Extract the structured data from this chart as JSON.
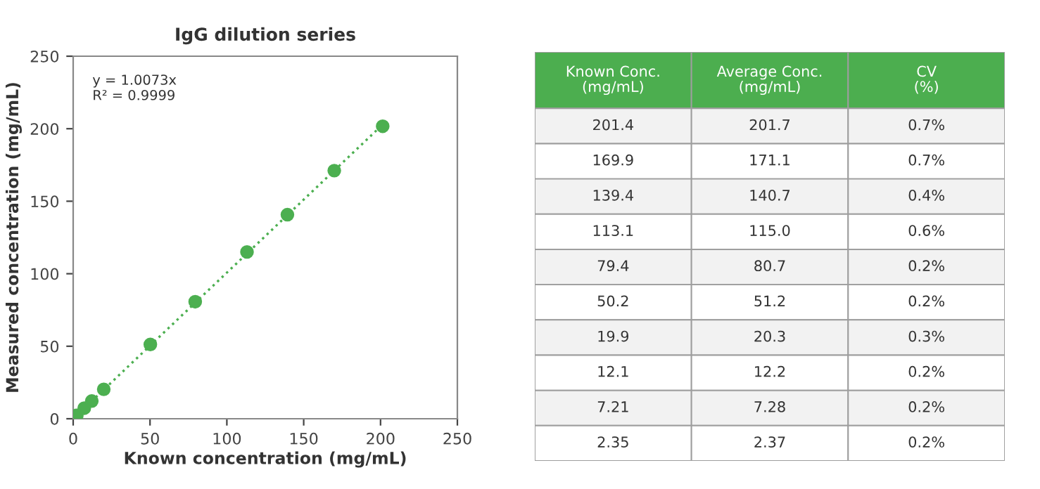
{
  "chart_data": [
    {
      "type": "scatter",
      "title": "IgG dilution series",
      "xlabel": "Known concentration (mg/mL)",
      "ylabel": "Measured concentration (mg/mL)",
      "xlim": [
        0,
        250
      ],
      "ylim": [
        0,
        250
      ],
      "xticks": [
        0,
        50,
        100,
        150,
        200,
        250
      ],
      "yticks": [
        0,
        50,
        100,
        150,
        200,
        250
      ],
      "grid": false,
      "legend": false,
      "marker": "circle",
      "series": [
        {
          "type": "scatter",
          "color": "#4caf50",
          "x": [
            2.35,
            7.21,
            12.1,
            19.9,
            50.2,
            79.4,
            113.1,
            139.4,
            169.9,
            201.4
          ],
          "values": [
            2.37,
            7.28,
            12.2,
            20.3,
            51.2,
            80.7,
            115.0,
            140.7,
            171.1,
            201.7
          ]
        },
        {
          "type": "line",
          "color": "#4caf50",
          "line_style": "dotted",
          "marker": "none",
          "x": [
            0,
            201.4
          ],
          "values": [
            0,
            202.9
          ]
        }
      ],
      "annotations": [
        "y = 1.0073x\nR² = 0.9999"
      ]
    },
    {
      "type": "other",
      "color": "#4cae4f",
      "annotations": [
        "Known Conc.\n(mg/mL)",
        "Average Conc.\n(mg/mL)",
        "CV\n(%)",
        "201.4",
        "201.7",
        "0.7%",
        "169.9",
        "171.1",
        "0.7%",
        "139.4",
        "140.7",
        "0.4%",
        "113.1",
        "115.0",
        "0.6%",
        "79.4",
        "80.7",
        "0.2%",
        "50.2",
        "51.2",
        "0.2%",
        "19.9",
        "20.3",
        "0.3%",
        "12.1",
        "12.2",
        "0.2%",
        "7.21",
        "7.28",
        "0.2%",
        "2.35",
        "2.37",
        "0.2%"
      ]
    }
  ]
}
